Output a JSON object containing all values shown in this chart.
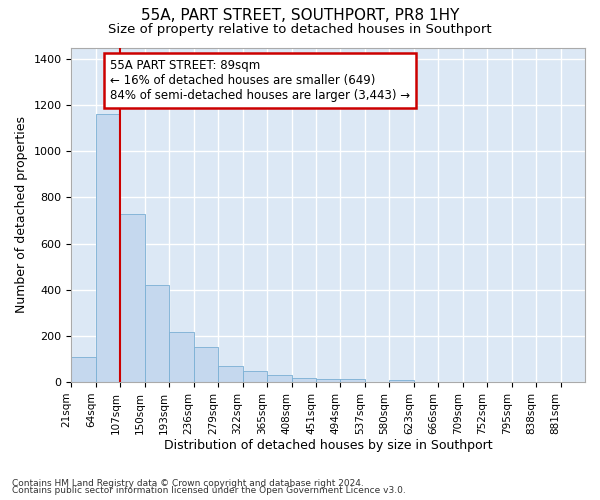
{
  "title": "55A, PART STREET, SOUTHPORT, PR8 1HY",
  "subtitle": "Size of property relative to detached houses in Southport",
  "xlabel": "Distribution of detached houses by size in Southport",
  "ylabel": "Number of detached properties",
  "categories": [
    "21sqm",
    "64sqm",
    "107sqm",
    "150sqm",
    "193sqm",
    "236sqm",
    "279sqm",
    "322sqm",
    "365sqm",
    "408sqm",
    "451sqm",
    "494sqm",
    "537sqm",
    "580sqm",
    "623sqm",
    "666sqm",
    "709sqm",
    "752sqm",
    "795sqm",
    "838sqm",
    "881sqm"
  ],
  "bar_heights": [
    108,
    1160,
    730,
    420,
    215,
    150,
    70,
    48,
    30,
    18,
    15,
    15,
    0,
    10,
    0,
    0,
    0,
    0,
    0,
    0,
    0
  ],
  "bar_color": "#c5d8ee",
  "bar_edge_color": "#7aafd4",
  "annotation_box_color": "#ffffff",
  "annotation_box_edge": "#cc0000",
  "vline_color": "#cc0000",
  "annotation_text_line1": "55A PART STREET: 89sqm",
  "annotation_text_line2": "← 16% of detached houses are smaller (649)",
  "annotation_text_line3": "84% of semi-detached houses are larger (3,443) →",
  "footer1": "Contains HM Land Registry data © Crown copyright and database right 2024.",
  "footer2": "Contains public sector information licensed under the Open Government Licence v3.0.",
  "ylim": [
    0,
    1450
  ],
  "yticks": [
    0,
    200,
    400,
    600,
    800,
    1000,
    1200,
    1400
  ],
  "background_color": "#dce8f5",
  "grid_color": "#ffffff",
  "title_fontsize": 11,
  "subtitle_fontsize": 9.5,
  "axis_label_fontsize": 9,
  "tick_fontsize": 8
}
